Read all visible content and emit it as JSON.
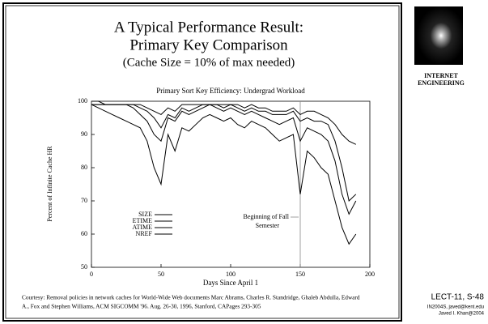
{
  "slide": {
    "title": [
      "A Typical Performance Result:",
      "Primary Key Comparison"
    ],
    "subtitle": "(Cache Size = 10% of max needed)",
    "logo_text": [
      "INTERNET",
      "ENGINEERING"
    ],
    "footer": [
      "Courtesy: Removal policies in network caches for World-Wide Web documents  Marc Abrams, Charles R. Standridge, Ghaleb Abdulla, Edward",
      "A., Fox and Stephen Williams,  ACM SIGCOMM '96.  Aug. 26-30, 1996, Stanford, CAPages 293-305"
    ],
    "slide_number": "LECT-11, S-48",
    "credits": [
      "IN2004S, javed@kent.edu",
      "Javed I. Khan@2004"
    ]
  },
  "chart_data": {
    "type": "line",
    "title": "Primary Sort Key Efficiency: Undergrad Workload",
    "xlabel": "Days Since April 1",
    "ylabel": "Percent of Infinite Cache HR",
    "x": [
      0,
      5,
      10,
      15,
      20,
      25,
      30,
      35,
      40,
      45,
      50,
      55,
      60,
      65,
      70,
      75,
      80,
      85,
      90,
      95,
      100,
      105,
      110,
      115,
      120,
      125,
      130,
      135,
      140,
      145,
      150,
      155,
      160,
      165,
      170,
      175,
      180,
      185,
      190
    ],
    "series": [
      {
        "name": "SIZE",
        "color": "#000000",
        "values": [
          99,
          98,
          97,
          96,
          95,
          94,
          93,
          92,
          88,
          80,
          75,
          90,
          85,
          92,
          91,
          93,
          95,
          96,
          95,
          94,
          95,
          93,
          92,
          94,
          93,
          92,
          90,
          88,
          89,
          90,
          72,
          85,
          83,
          80,
          78,
          70,
          62,
          57,
          60
        ]
      },
      {
        "name": "ETIME",
        "color": "#000000",
        "values": [
          99,
          99,
          99,
          99,
          99,
          99,
          98,
          96,
          94,
          90,
          88,
          95,
          94,
          97,
          96,
          97,
          98,
          99,
          98,
          97,
          98,
          97,
          96,
          97,
          96,
          95,
          94,
          93,
          94,
          95,
          88,
          92,
          91,
          90,
          88,
          82,
          72,
          66,
          70
        ]
      },
      {
        "name": "ATIME",
        "color": "#000000",
        "values": [
          100,
          100,
          99,
          99,
          99,
          99,
          99,
          98,
          97,
          95,
          92,
          96,
          95,
          98,
          97,
          98,
          99,
          99,
          99,
          98,
          99,
          98,
          97,
          98,
          97,
          97,
          96,
          96,
          96,
          97,
          94,
          95,
          94,
          94,
          93,
          88,
          80,
          70,
          72
        ]
      },
      {
        "name": "NREF",
        "color": "#000000",
        "values": [
          99,
          99,
          99,
          99,
          99,
          99,
          99,
          99,
          98,
          97,
          96,
          98,
          97,
          99,
          99,
          99,
          99,
          99,
          99,
          99,
          99,
          99,
          98,
          99,
          98,
          98,
          97,
          97,
          97,
          98,
          96,
          97,
          97,
          96,
          95,
          93,
          90,
          88,
          87
        ]
      }
    ],
    "xlim": [
      0,
      200
    ],
    "xticks": [
      0,
      50,
      100,
      150,
      200
    ],
    "ylim": [
      50,
      100
    ],
    "yticks": [
      50,
      60,
      70,
      80,
      90,
      100
    ],
    "annotation": {
      "text": [
        "Beginning of Fall",
        "Semester"
      ],
      "x": 150
    },
    "grid": false
  }
}
